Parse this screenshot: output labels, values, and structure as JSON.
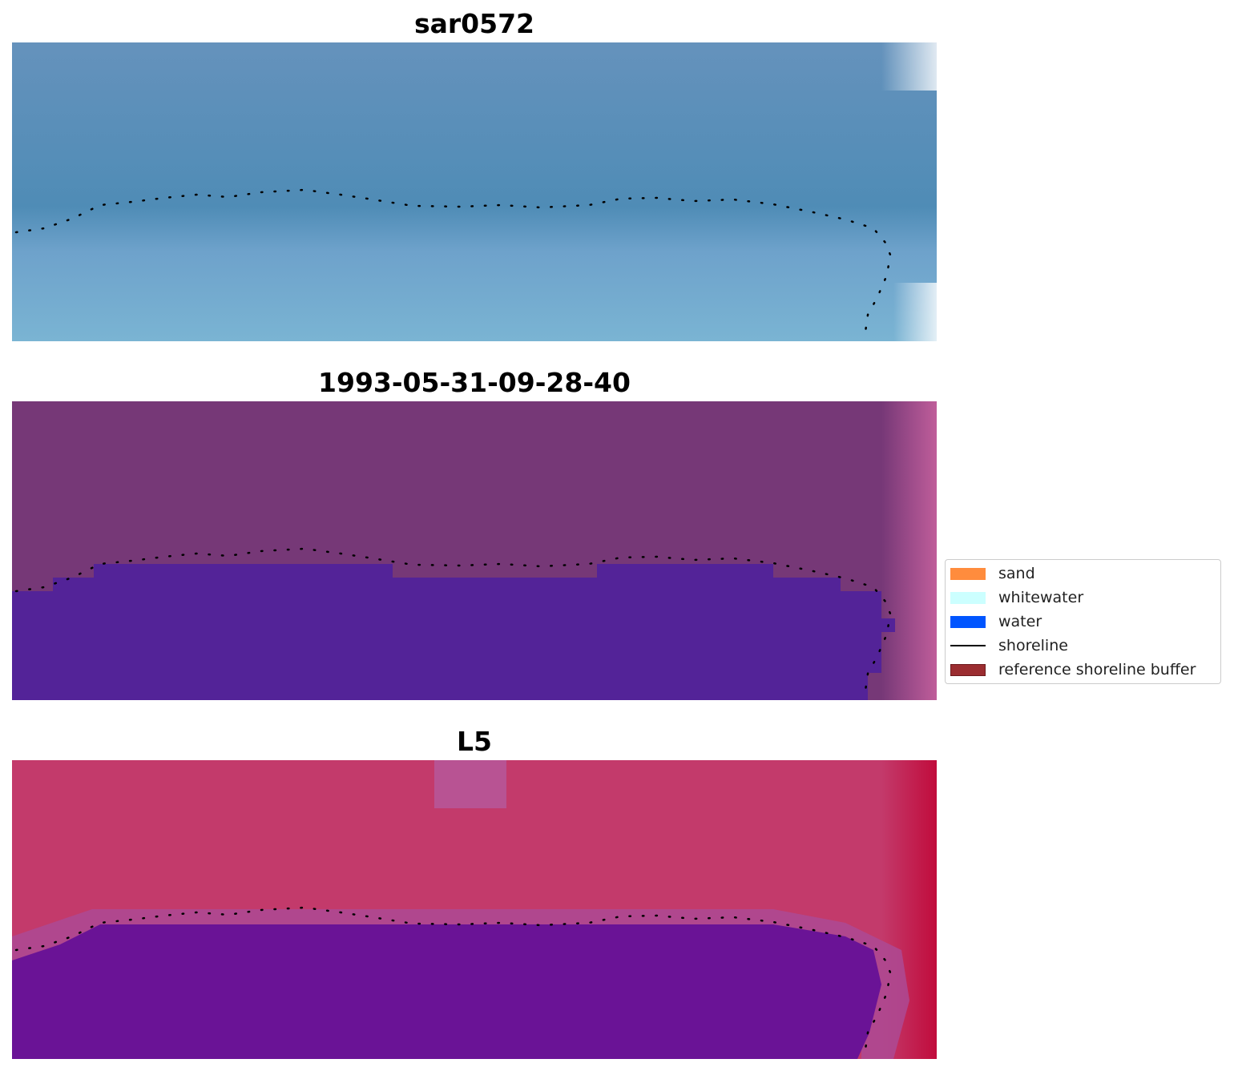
{
  "panels": [
    {
      "title": "sar0572",
      "kind": "rgb"
    },
    {
      "title": "1993-05-31-09-28-40",
      "kind": "classified"
    },
    {
      "title": "L5",
      "kind": "ndwi"
    }
  ],
  "legend": {
    "items": [
      {
        "label": "sand",
        "color": "#ff8c3d",
        "type": "patch"
      },
      {
        "label": "whitewater",
        "color": "#ccffff",
        "type": "patch"
      },
      {
        "label": "water",
        "color": "#0055ff",
        "type": "patch"
      },
      {
        "label": "shoreline",
        "color": "#000000",
        "type": "line"
      },
      {
        "label": "reference shoreline buffer",
        "color": "#9b2d30",
        "type": "patch"
      }
    ]
  },
  "colors": {
    "rgb_water": "#5a8fba",
    "rgb_land": "#7ab3d1",
    "classified_land": "#763877",
    "classified_water": "#532398",
    "ndwi_land": "#c33a6b",
    "ndwi_water": "#6a1396",
    "shoreline": "#000000"
  }
}
